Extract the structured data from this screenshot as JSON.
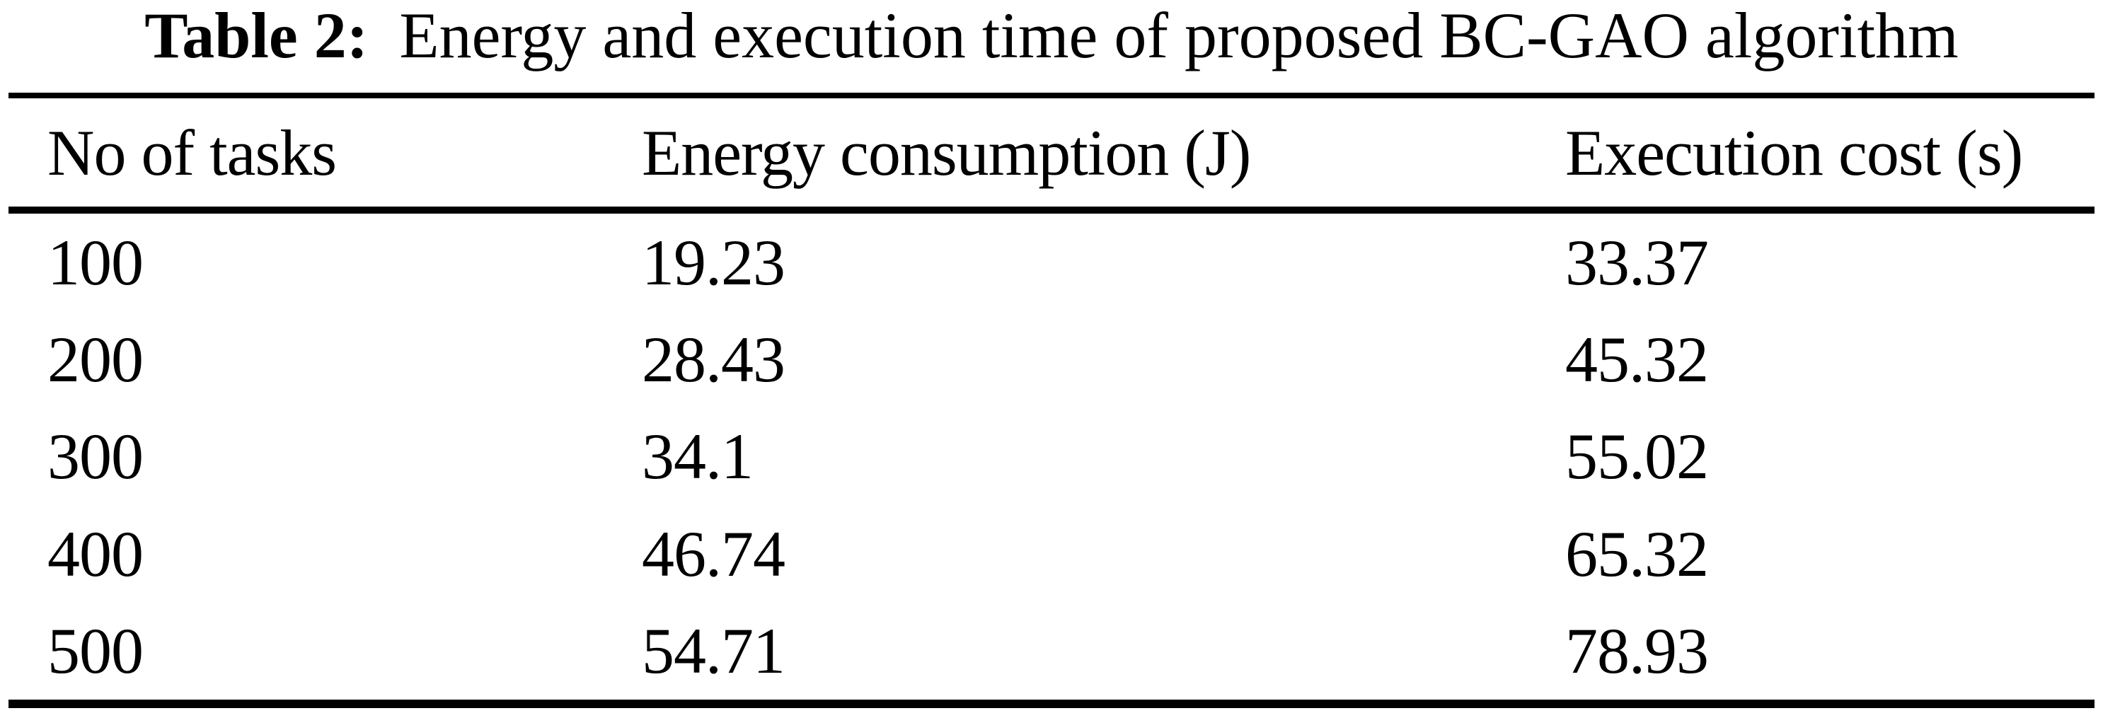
{
  "caption": {
    "label": "Table 2:",
    "text": "Energy and execution time of proposed BC-GAO algorithm"
  },
  "table": {
    "columns": [
      "No of tasks",
      "Energy consumption (J)",
      "Execution cost (s)"
    ],
    "rows": [
      [
        "100",
        "19.23",
        "33.37"
      ],
      [
        "200",
        "28.43",
        "45.32"
      ],
      [
        "300",
        "34.1",
        "55.02"
      ],
      [
        "400",
        "46.74",
        "65.32"
      ],
      [
        "500",
        "54.71",
        "78.93"
      ]
    ]
  },
  "colors": {
    "background": "#ffffff",
    "text": "#000000",
    "rule": "#000000"
  }
}
